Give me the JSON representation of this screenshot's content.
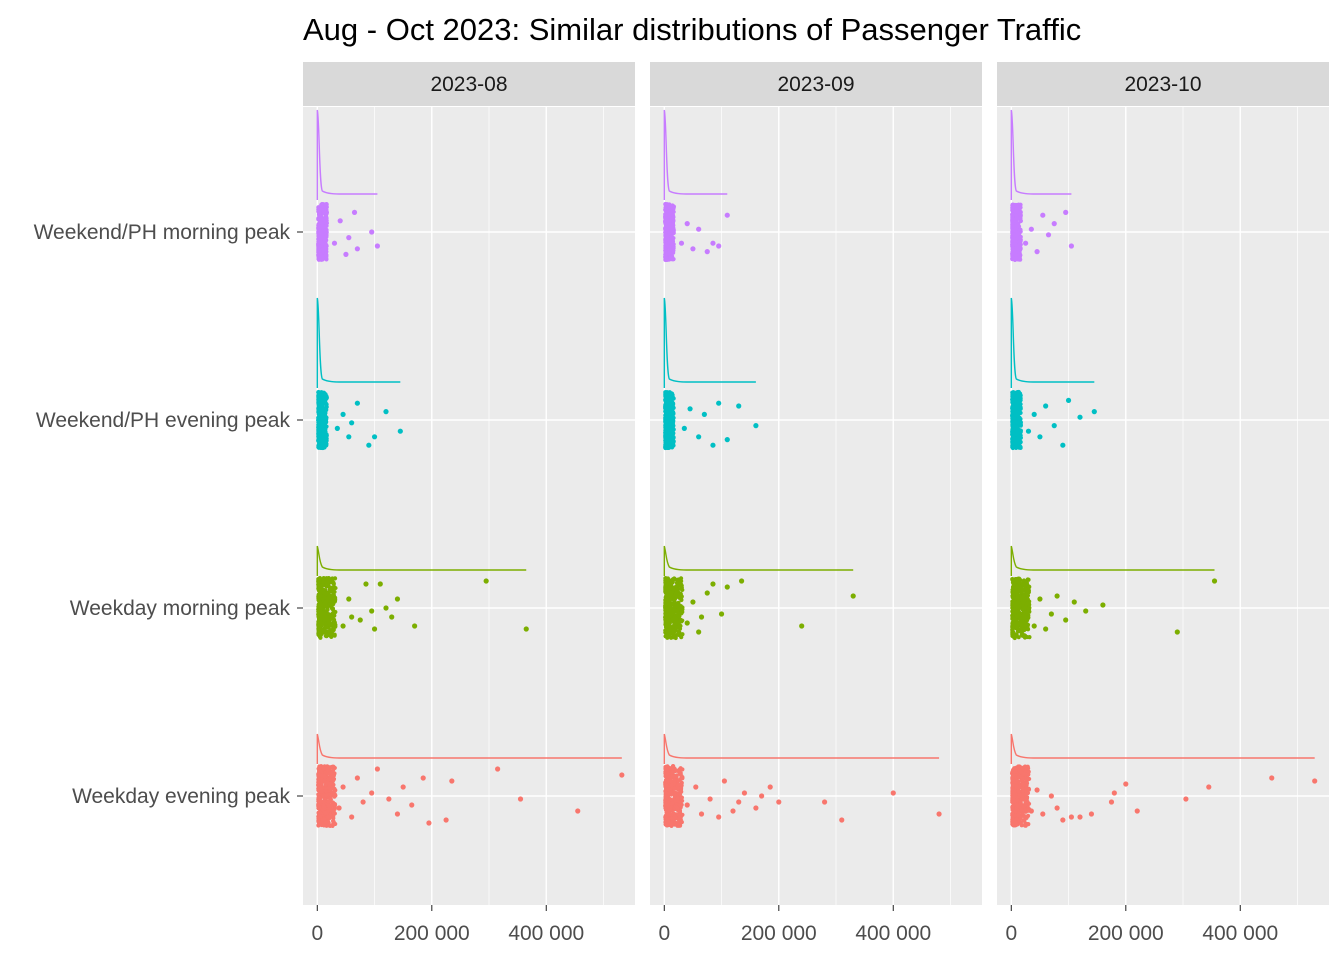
{
  "chart_data": {
    "type": "scatter",
    "title": "Aug - Oct 2023: Similar distributions of Passenger Traffic",
    "xlabel": "",
    "ylabel": "",
    "x_ticks": [
      {
        "value": 0,
        "label": "0"
      },
      {
        "value": 200000,
        "label": "200 000"
      },
      {
        "value": 400000,
        "label": "400 000"
      }
    ],
    "xlim": [
      -25000,
      555000
    ],
    "categories": [
      "Weekday evening peak",
      "Weekday morning peak",
      "Weekend/PH evening peak",
      "Weekend/PH morning peak"
    ],
    "colors": {
      "Weekday evening peak": "#F8766D",
      "Weekday morning peak": "#7CAE00",
      "Weekend/PH evening peak": "#00BFC4",
      "Weekend/PH morning peak": "#C77CFF"
    },
    "panel_background": "#EBEBEB",
    "strip_background": "#D9D9D9",
    "grid": true,
    "legend": "none",
    "panels": [
      {
        "label": "2023-08",
        "series": [
          {
            "category": "Weekday evening peak",
            "max": 532000,
            "outliers": [
              [
                38000,
                0.4
              ],
              [
                45000,
                -0.3
              ],
              [
                60000,
                0.7
              ],
              [
                70000,
                -0.6
              ],
              [
                80000,
                0.2
              ],
              [
                95000,
                -0.1
              ],
              [
                105000,
                -0.9
              ],
              [
                125000,
                0.1
              ],
              [
                140000,
                0.6
              ],
              [
                150000,
                -0.3
              ],
              [
                165000,
                0.3
              ],
              [
                185000,
                -0.6
              ],
              [
                195000,
                0.9
              ],
              [
                225000,
                0.8
              ],
              [
                235000,
                -0.5
              ],
              [
                315000,
                -0.9
              ],
              [
                355000,
                0.1
              ],
              [
                455000,
                0.5
              ],
              [
                532000,
                -0.7
              ]
            ]
          },
          {
            "category": "Weekday morning peak",
            "max": 365000,
            "outliers": [
              [
                45000,
                0.6
              ],
              [
                55000,
                -0.3
              ],
              [
                60000,
                0.3
              ],
              [
                75000,
                0.4
              ],
              [
                85000,
                -0.8
              ],
              [
                95000,
                0.1
              ],
              [
                100000,
                0.7
              ],
              [
                110000,
                -0.8
              ],
              [
                120000,
                0.0
              ],
              [
                130000,
                0.3
              ],
              [
                140000,
                -0.3
              ],
              [
                170000,
                0.6
              ],
              [
                295000,
                -0.9
              ],
              [
                365000,
                0.7
              ]
            ]
          },
          {
            "category": "Weekend/PH evening peak",
            "max": 145000,
            "outliers": [
              [
                35000,
                0.3
              ],
              [
                45000,
                -0.2
              ],
              [
                55000,
                0.6
              ],
              [
                60000,
                0.1
              ],
              [
                70000,
                -0.6
              ],
              [
                90000,
                0.9
              ],
              [
                100000,
                0.6
              ],
              [
                120000,
                -0.3
              ],
              [
                145000,
                0.4
              ]
            ]
          },
          {
            "category": "Weekend/PH morning peak",
            "max": 105000,
            "outliers": [
              [
                30000,
                0.4
              ],
              [
                40000,
                -0.4
              ],
              [
                50000,
                0.8
              ],
              [
                55000,
                0.2
              ],
              [
                65000,
                -0.7
              ],
              [
                70000,
                0.6
              ],
              [
                95000,
                0.0
              ],
              [
                105000,
                0.5
              ]
            ]
          }
        ]
      },
      {
        "label": "2023-09",
        "series": [
          {
            "category": "Weekday evening peak",
            "max": 480000,
            "outliers": [
              [
                40000,
                0.3
              ],
              [
                55000,
                -0.3
              ],
              [
                65000,
                0.6
              ],
              [
                80000,
                0.1
              ],
              [
                95000,
                0.7
              ],
              [
                105000,
                -0.5
              ],
              [
                120000,
                0.5
              ],
              [
                130000,
                0.2
              ],
              [
                140000,
                -0.1
              ],
              [
                160000,
                0.4
              ],
              [
                170000,
                0.0
              ],
              [
                185000,
                -0.3
              ],
              [
                200000,
                0.2
              ],
              [
                280000,
                0.2
              ],
              [
                310000,
                0.8
              ],
              [
                400000,
                -0.1
              ],
              [
                480000,
                0.6
              ]
            ]
          },
          {
            "category": "Weekday morning peak",
            "max": 330000,
            "outliers": [
              [
                40000,
                0.5
              ],
              [
                50000,
                -0.2
              ],
              [
                60000,
                0.8
              ],
              [
                65000,
                0.3
              ],
              [
                75000,
                -0.5
              ],
              [
                85000,
                -0.8
              ],
              [
                100000,
                0.2
              ],
              [
                110000,
                -0.7
              ],
              [
                135000,
                -0.9
              ],
              [
                240000,
                0.6
              ],
              [
                330000,
                -0.4
              ]
            ]
          },
          {
            "category": "Weekend/PH evening peak",
            "max": 160000,
            "outliers": [
              [
                35000,
                0.3
              ],
              [
                45000,
                -0.4
              ],
              [
                60000,
                0.6
              ],
              [
                70000,
                -0.2
              ],
              [
                85000,
                0.9
              ],
              [
                95000,
                -0.6
              ],
              [
                110000,
                0.7
              ],
              [
                130000,
                -0.5
              ],
              [
                160000,
                0.2
              ]
            ]
          },
          {
            "category": "Weekend/PH morning peak",
            "max": 110000,
            "outliers": [
              [
                30000,
                0.4
              ],
              [
                40000,
                -0.3
              ],
              [
                50000,
                0.6
              ],
              [
                60000,
                -0.1
              ],
              [
                75000,
                0.7
              ],
              [
                85000,
                0.4
              ],
              [
                95000,
                0.5
              ],
              [
                110000,
                -0.6
              ]
            ]
          }
        ]
      },
      {
        "label": "2023-10",
        "series": [
          {
            "category": "Weekday evening peak",
            "max": 530000,
            "outliers": [
              [
                35000,
                0.5
              ],
              [
                45000,
                -0.2
              ],
              [
                55000,
                0.6
              ],
              [
                70000,
                0.0
              ],
              [
                80000,
                0.4
              ],
              [
                90000,
                0.8
              ],
              [
                105000,
                0.7
              ],
              [
                120000,
                0.7
              ],
              [
                140000,
                0.6
              ],
              [
                175000,
                0.2
              ],
              [
                180000,
                -0.1
              ],
              [
                200000,
                -0.4
              ],
              [
                220000,
                0.5
              ],
              [
                305000,
                0.1
              ],
              [
                345000,
                -0.3
              ],
              [
                455000,
                -0.6
              ],
              [
                530000,
                -0.5
              ]
            ]
          },
          {
            "category": "Weekday morning peak",
            "max": 355000,
            "outliers": [
              [
                40000,
                0.6
              ],
              [
                50000,
                -0.3
              ],
              [
                60000,
                0.7
              ],
              [
                70000,
                0.2
              ],
              [
                80000,
                -0.4
              ],
              [
                95000,
                0.4
              ],
              [
                110000,
                -0.2
              ],
              [
                130000,
                0.1
              ],
              [
                160000,
                -0.1
              ],
              [
                290000,
                0.8
              ],
              [
                355000,
                -0.9
              ]
            ]
          },
          {
            "category": "Weekend/PH evening peak",
            "max": 145000,
            "outliers": [
              [
                30000,
                0.4
              ],
              [
                40000,
                -0.2
              ],
              [
                50000,
                0.6
              ],
              [
                60000,
                -0.5
              ],
              [
                75000,
                0.2
              ],
              [
                90000,
                0.9
              ],
              [
                100000,
                -0.7
              ],
              [
                120000,
                -0.1
              ],
              [
                145000,
                -0.3
              ]
            ]
          },
          {
            "category": "Weekend/PH morning peak",
            "max": 105000,
            "outliers": [
              [
                25000,
                0.4
              ],
              [
                35000,
                -0.1
              ],
              [
                45000,
                0.7
              ],
              [
                55000,
                -0.6
              ],
              [
                65000,
                0.1
              ],
              [
                75000,
                -0.3
              ],
              [
                95000,
                -0.7
              ],
              [
                105000,
                0.5
              ]
            ]
          }
        ]
      }
    ]
  }
}
